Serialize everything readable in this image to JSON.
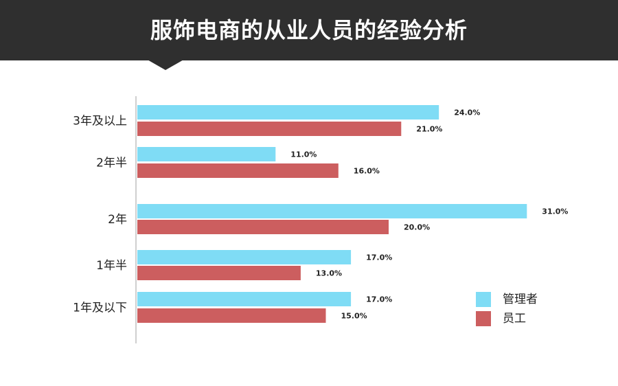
{
  "chart_data": {
    "type": "bar",
    "orientation": "horizontal",
    "title": "服饰电商的从业人员的经验分析",
    "categories": [
      "3年及以上",
      "2年半",
      "2年",
      "1年半",
      "1年及以下"
    ],
    "series": [
      {
        "name": "管理者",
        "color": "#7fdcf5",
        "values": [
          24.0,
          11.0,
          31.0,
          17.0,
          17.0
        ],
        "labels": [
          "24.0%",
          "11.0%",
          "31.0%",
          "17.0%",
          "17.0%"
        ]
      },
      {
        "name": "员工",
        "color": "#cc5e5f",
        "values": [
          21.0,
          16.0,
          20.0,
          13.0,
          15.0
        ],
        "labels": [
          "21.0%",
          "16.0%",
          "20.0%",
          "13.0%",
          "15.0%"
        ]
      }
    ],
    "xlim": [
      0,
      100
    ],
    "grid": false,
    "legend_position": "bottom-right"
  }
}
